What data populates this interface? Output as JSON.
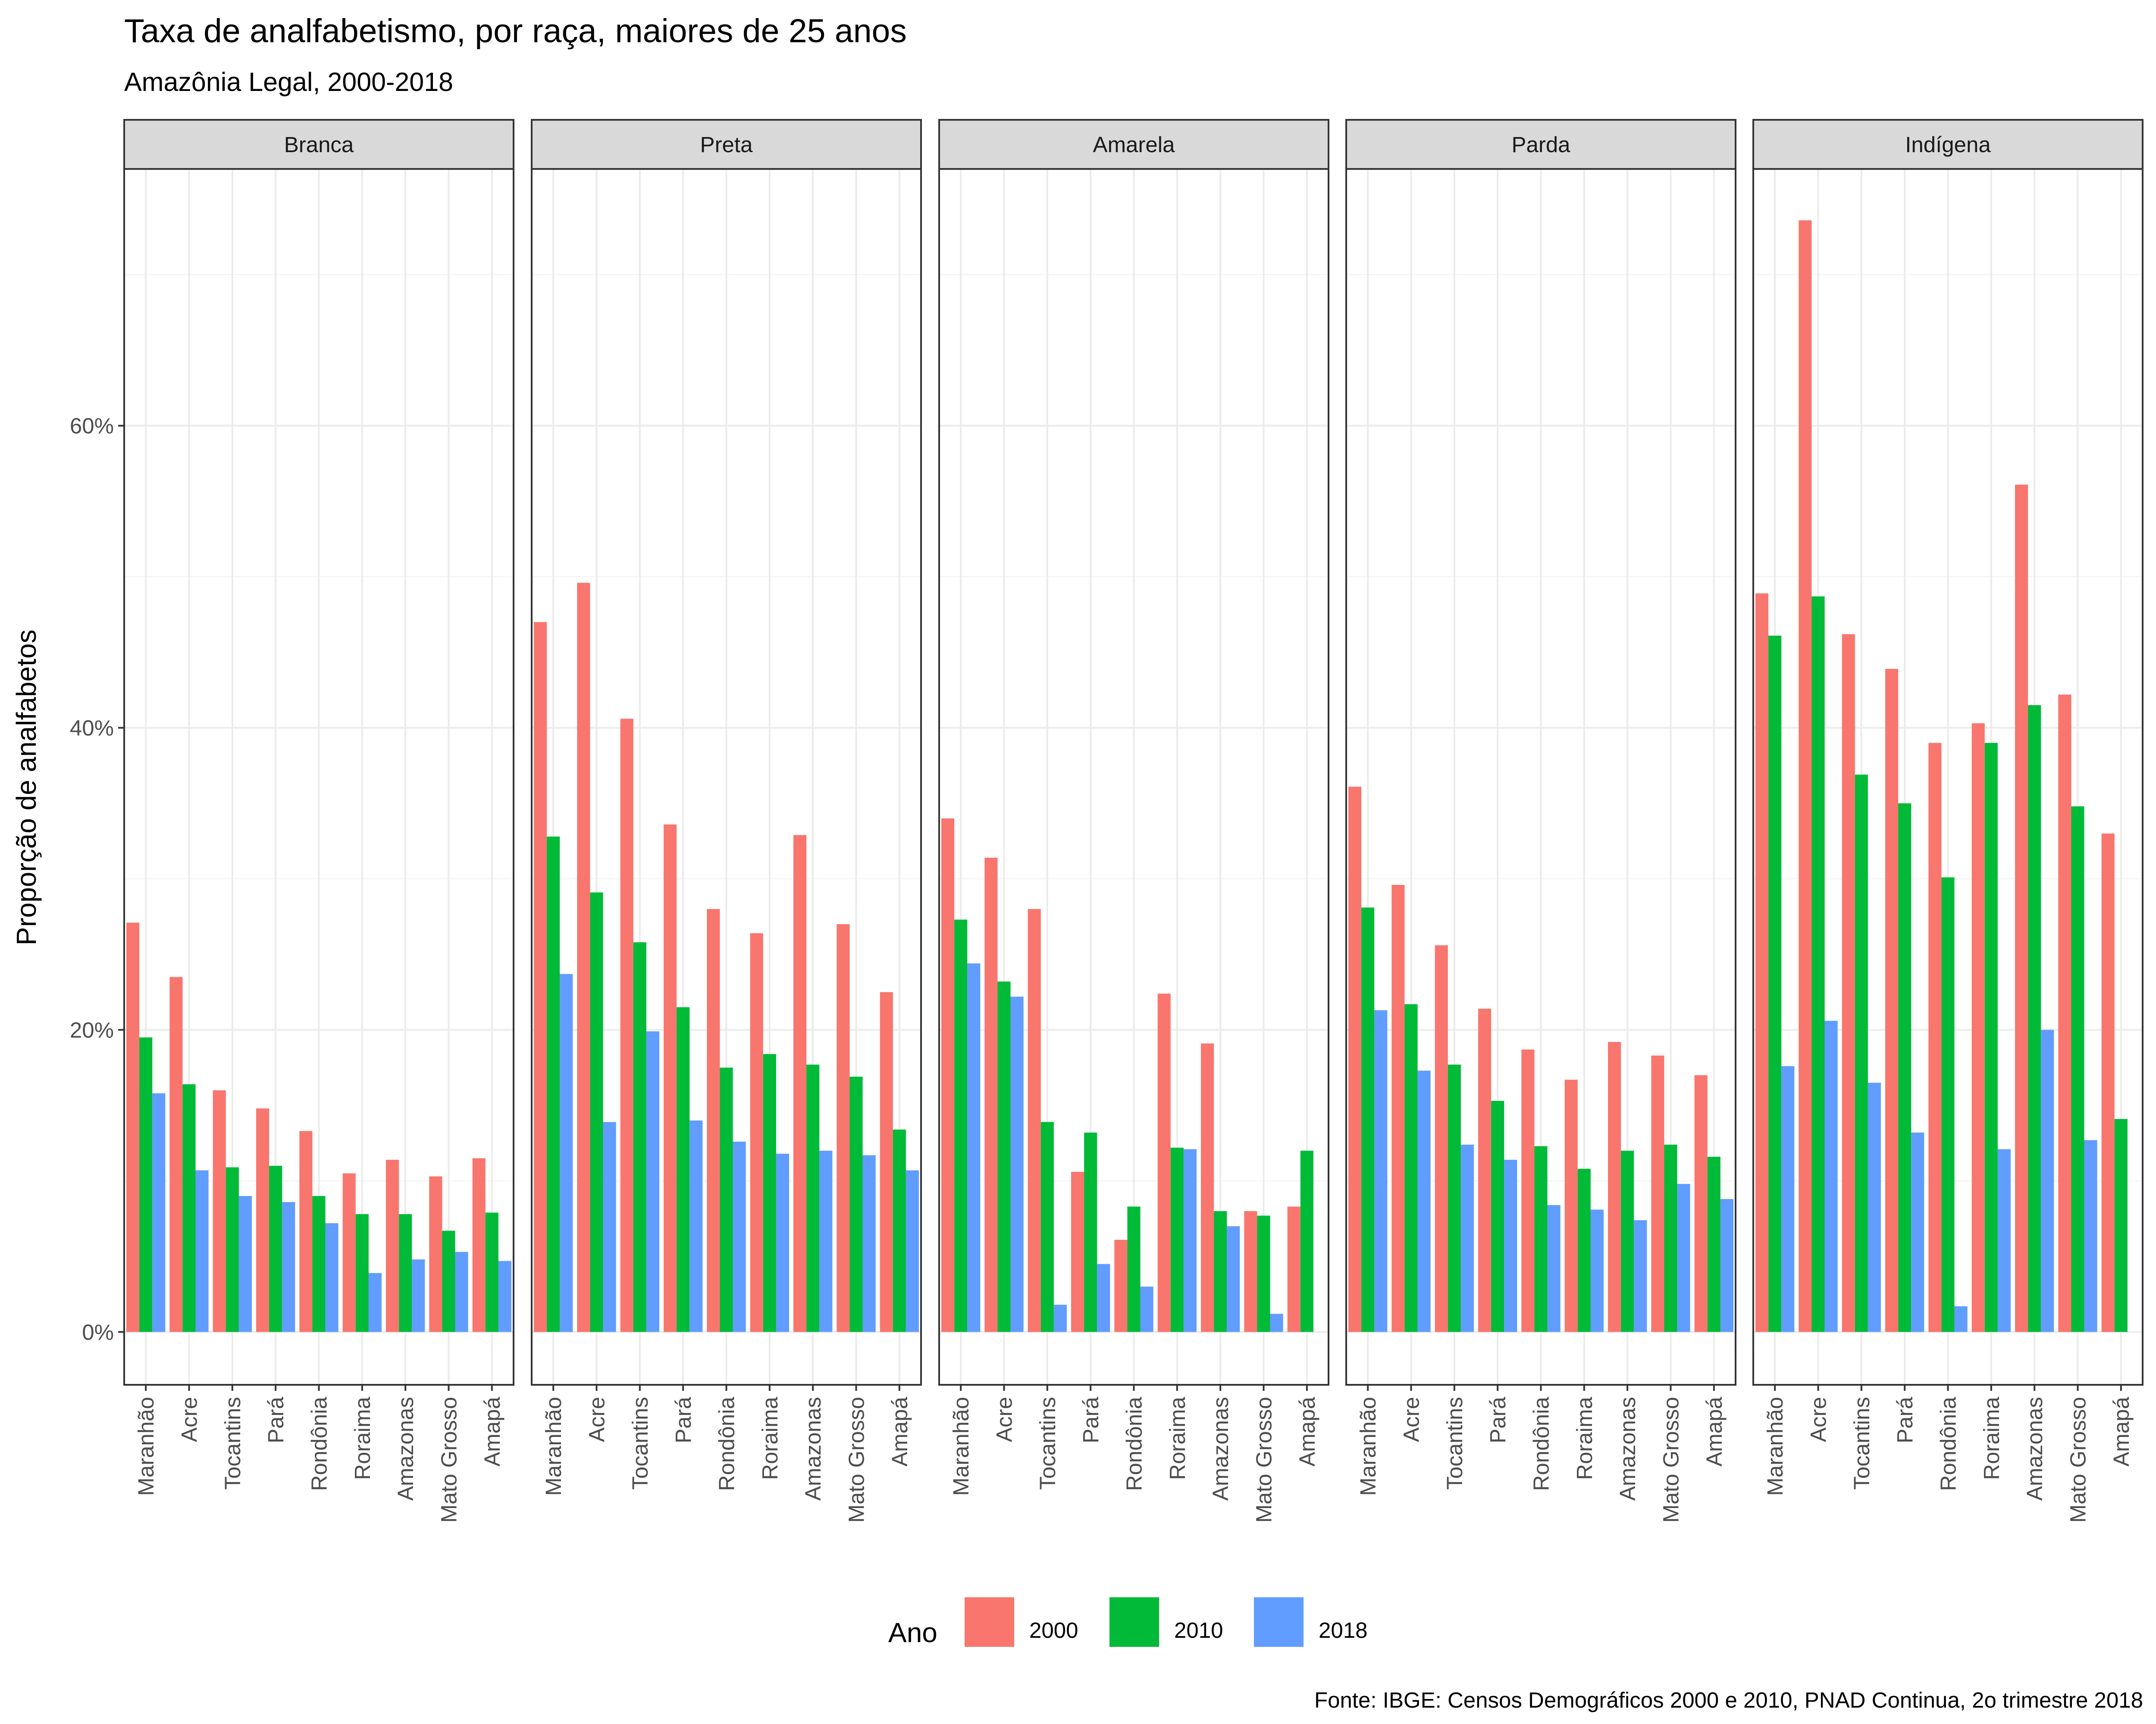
{
  "chart_data": {
    "type": "bar",
    "title": "Taxa de analfabetismo, por raça, maiores de 25 anos",
    "subtitle": "Amazônia Legal, 2000-2018",
    "ylabel": "Proporção de analfabetos",
    "caption": "Fonte: IBGE: Censos Demográficos 2000 e 2010, PNAD Continua, 2o trimestre 2018",
    "ylim": [
      -3.5,
      77
    ],
    "yticks": [
      0,
      20,
      40,
      60
    ],
    "ytick_labels": [
      "0%",
      "20%",
      "40%",
      "60%"
    ],
    "grid": true,
    "legend": {
      "title": "Ano",
      "position": "bottom",
      "entries": [
        "2000",
        "2010",
        "2018"
      ]
    },
    "colors": {
      "2000": "#F8766D",
      "2010": "#00BA38",
      "2018": "#619CFF"
    },
    "categories": [
      "Maranhão",
      "Acre",
      "Tocantins",
      "Pará",
      "Rondônia",
      "Roraima",
      "Amazonas",
      "Mato Grosso",
      "Amapá"
    ],
    "facets": [
      {
        "label": "Branca",
        "series": [
          {
            "name": "2000",
            "values": [
              27.1,
              23.5,
              16.0,
              14.8,
              13.3,
              10.5,
              11.4,
              10.3,
              11.5
            ]
          },
          {
            "name": "2010",
            "values": [
              19.5,
              16.4,
              10.9,
              11.0,
              9.0,
              7.8,
              7.8,
              6.7,
              7.9
            ]
          },
          {
            "name": "2018",
            "values": [
              15.8,
              10.7,
              9.0,
              8.6,
              7.2,
              3.9,
              4.8,
              5.3,
              4.7
            ]
          }
        ]
      },
      {
        "label": "Preta",
        "series": [
          {
            "name": "2000",
            "values": [
              47.0,
              49.6,
              40.6,
              33.6,
              28.0,
              26.4,
              32.9,
              27.0,
              22.5
            ]
          },
          {
            "name": "2010",
            "values": [
              32.8,
              29.1,
              25.8,
              21.5,
              17.5,
              18.4,
              17.7,
              16.9,
              13.4
            ]
          },
          {
            "name": "2018",
            "values": [
              23.7,
              13.9,
              19.9,
              14.0,
              12.6,
              11.8,
              12.0,
              11.7,
              10.7
            ]
          }
        ]
      },
      {
        "label": "Amarela",
        "series": [
          {
            "name": "2000",
            "values": [
              34.0,
              31.4,
              28.0,
              10.6,
              6.1,
              22.4,
              19.1,
              8.0,
              8.3
            ]
          },
          {
            "name": "2010",
            "values": [
              27.3,
              23.2,
              13.9,
              13.2,
              8.3,
              12.2,
              8.0,
              7.7,
              12.0
            ]
          },
          {
            "name": "2018",
            "values": [
              24.4,
              22.2,
              1.8,
              4.5,
              3.0,
              12.1,
              7.0,
              1.2,
              null
            ]
          }
        ]
      },
      {
        "label": "Parda",
        "series": [
          {
            "name": "2000",
            "values": [
              36.1,
              29.6,
              25.6,
              21.4,
              18.7,
              16.7,
              19.2,
              18.3,
              17.0
            ]
          },
          {
            "name": "2010",
            "values": [
              28.1,
              21.7,
              17.7,
              15.3,
              12.3,
              10.8,
              12.0,
              12.4,
              11.6
            ]
          },
          {
            "name": "2018",
            "values": [
              21.3,
              17.3,
              12.4,
              11.4,
              8.4,
              8.1,
              7.4,
              9.8,
              8.8
            ]
          }
        ]
      },
      {
        "label": "Indígena",
        "series": [
          {
            "name": "2000",
            "values": [
              48.9,
              73.6,
              46.2,
              43.9,
              39.0,
              40.3,
              56.1,
              42.2,
              33.0
            ]
          },
          {
            "name": "2010",
            "values": [
              46.1,
              48.7,
              36.9,
              35.0,
              30.1,
              39.0,
              41.5,
              34.8,
              14.1
            ]
          },
          {
            "name": "2018",
            "values": [
              17.6,
              20.6,
              16.5,
              13.2,
              1.7,
              12.1,
              20.0,
              12.7,
              null
            ]
          }
        ]
      }
    ]
  }
}
